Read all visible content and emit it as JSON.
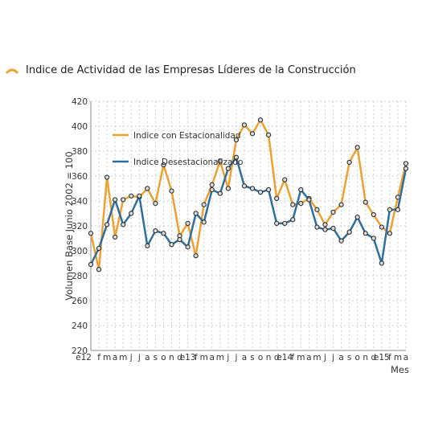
{
  "chart_data": {
    "type": "line",
    "title": "Indice de Actividad de las Empresas Líderes de la Construcción",
    "xlabel": "Mes",
    "ylabel": "Volumen Base Junio 2002 = 100",
    "ylim": [
      220,
      420
    ],
    "yticks": [
      220,
      240,
      260,
      280,
      300,
      320,
      340,
      360,
      380,
      400,
      420
    ],
    "grid": true,
    "legend_position": "top-left",
    "x": [
      "e12",
      "f",
      "m",
      "a",
      "m",
      "j",
      "j",
      "a",
      "s",
      "o",
      "n",
      "d",
      "e13",
      "f",
      "m",
      "a",
      "m",
      "j",
      "j",
      "a",
      "s",
      "o",
      "n",
      "d",
      "e14",
      "f",
      "m",
      "a",
      "m",
      "j",
      "j",
      "a",
      "s",
      "o",
      "n",
      "d",
      "e15",
      "f",
      "m",
      "a"
    ],
    "series": [
      {
        "name": "Indice con Estacionalidad",
        "color": "#f0a030",
        "values": [
          314,
          285,
          359,
          311,
          341,
          344,
          343,
          350,
          338,
          369,
          348,
          312,
          322,
          296,
          337,
          353,
          372,
          350,
          389,
          401,
          394,
          405,
          393,
          342,
          357,
          337,
          338,
          342,
          333,
          321,
          331,
          337,
          371,
          383,
          339,
          329,
          319,
          314,
          343,
          370
        ]
      },
      {
        "name": "Indice Desestacionalizado",
        "color": "#2e6f9e",
        "values": [
          289,
          302,
          321,
          341,
          321,
          330,
          344,
          304,
          316,
          314,
          305,
          309,
          303,
          330,
          323,
          349,
          346,
          366,
          375,
          352,
          350,
          347,
          349,
          322,
          322,
          325,
          349,
          341,
          319,
          317,
          318,
          308,
          315,
          327,
          314,
          310,
          290,
          333,
          333,
          366
        ]
      }
    ]
  }
}
